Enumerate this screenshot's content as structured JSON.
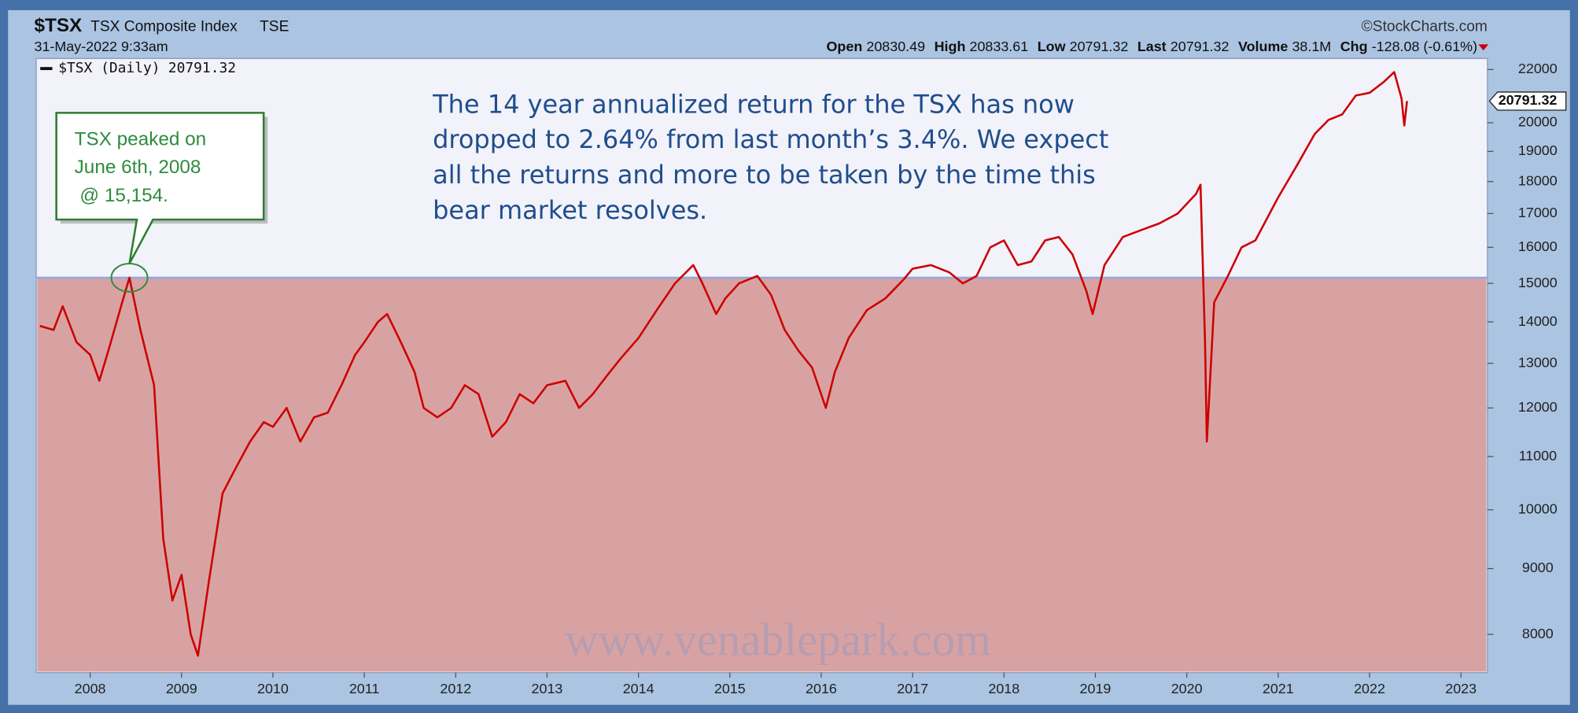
{
  "chart_data": {
    "type": "line",
    "header": {
      "symbol": "$TSX",
      "name": "TSX Composite Index",
      "exchange": "TSE",
      "source": "©StockCharts.com",
      "date": "31-May-2022 9:33am",
      "stats": [
        {
          "label": "Open",
          "value": "20830.49"
        },
        {
          "label": "High",
          "value": "20833.61"
        },
        {
          "label": "Low",
          "value": "20791.32"
        },
        {
          "label": "Last",
          "value": "20791.32"
        },
        {
          "label": "Volume",
          "value": "38.1M"
        },
        {
          "label": "Chg",
          "value": "-128.08 (-0.61%)"
        }
      ]
    },
    "log_scale": true,
    "grid": false,
    "xlim": [
      2007.41,
      2023.29
    ],
    "xticks": [
      2008,
      2009,
      2010,
      2011,
      2012,
      2013,
      2014,
      2015,
      2016,
      2017,
      2018,
      2019,
      2020,
      2021,
      2022,
      2023
    ],
    "ylim": [
      7470,
      22440
    ],
    "yticks": [
      8000,
      9000,
      10000,
      11000,
      12000,
      13000,
      14000,
      15000,
      16000,
      17000,
      18000,
      19000,
      20000,
      22000
    ],
    "hline": 15154,
    "series": [
      {
        "name": "$TSX (Daily)",
        "color": "#cc0000",
        "x": [
          2007.45,
          2007.6,
          2007.7,
          2007.85,
          2008.0,
          2008.1,
          2008.2,
          2008.35,
          2008.43,
          2008.55,
          2008.7,
          2008.8,
          2008.9,
          2009.0,
          2009.1,
          2009.18,
          2009.3,
          2009.45,
          2009.6,
          2009.75,
          2009.9,
          2010.0,
          2010.15,
          2010.3,
          2010.45,
          2010.6,
          2010.75,
          2010.9,
          2011.0,
          2011.15,
          2011.25,
          2011.4,
          2011.55,
          2011.65,
          2011.8,
          2011.95,
          2012.1,
          2012.25,
          2012.4,
          2012.55,
          2012.7,
          2012.85,
          2013.0,
          2013.2,
          2013.35,
          2013.5,
          2013.65,
          2013.8,
          2014.0,
          2014.2,
          2014.4,
          2014.6,
          2014.7,
          2014.85,
          2014.95,
          2015.1,
          2015.3,
          2015.45,
          2015.6,
          2015.75,
          2015.9,
          2016.05,
          2016.15,
          2016.3,
          2016.5,
          2016.7,
          2016.9,
          2017.0,
          2017.2,
          2017.4,
          2017.55,
          2017.7,
          2017.85,
          2018.0,
          2018.15,
          2018.3,
          2018.45,
          2018.6,
          2018.75,
          2018.9,
          2018.97,
          2019.1,
          2019.3,
          2019.5,
          2019.7,
          2019.9,
          2020.1,
          2020.15,
          2020.2,
          2020.22,
          2020.3,
          2020.45,
          2020.6,
          2020.75,
          2020.85,
          2021.0,
          2021.2,
          2021.4,
          2021.55,
          2021.7,
          2021.85,
          2022.0,
          2022.15,
          2022.27,
          2022.35,
          2022.38,
          2022.41
        ],
        "values": [
          13900,
          13800,
          14400,
          13500,
          13200,
          12600,
          13300,
          14500,
          15154,
          13800,
          12500,
          9500,
          8500,
          8900,
          8000,
          7700,
          8800,
          10300,
          10800,
          11300,
          11700,
          11600,
          12000,
          11300,
          11800,
          11900,
          12500,
          13200,
          13500,
          14000,
          14200,
          13500,
          12800,
          12000,
          11800,
          12000,
          12500,
          12300,
          11400,
          11700,
          12300,
          12100,
          12500,
          12600,
          12000,
          12300,
          12700,
          13100,
          13600,
          14300,
          15000,
          15500,
          15000,
          14200,
          14600,
          15000,
          15200,
          14700,
          13800,
          13300,
          12900,
          12000,
          12800,
          13600,
          14300,
          14600,
          15100,
          15400,
          15500,
          15300,
          15000,
          15200,
          16000,
          16200,
          15500,
          15600,
          16200,
          16300,
          15800,
          14800,
          14200,
          15500,
          16300,
          16500,
          16700,
          17000,
          17600,
          17900,
          13500,
          11300,
          14500,
          15200,
          16000,
          16200,
          16700,
          17500,
          18500,
          19600,
          20100,
          20300,
          21000,
          21100,
          21500,
          21900,
          20900,
          19900,
          20791.32
        ]
      }
    ],
    "callout": [
      "TSX peaked on",
      "June 6th, 2008",
      " @ 15,154."
    ],
    "commentary": [
      "The 14 year annualized return for the TSX has now",
      "dropped to 2.64% from last month’s 3.4%. We expect",
      "all the returns and more to be taken by the time this",
      "bear market resolves."
    ],
    "watermark": "www.venablepark.com"
  }
}
